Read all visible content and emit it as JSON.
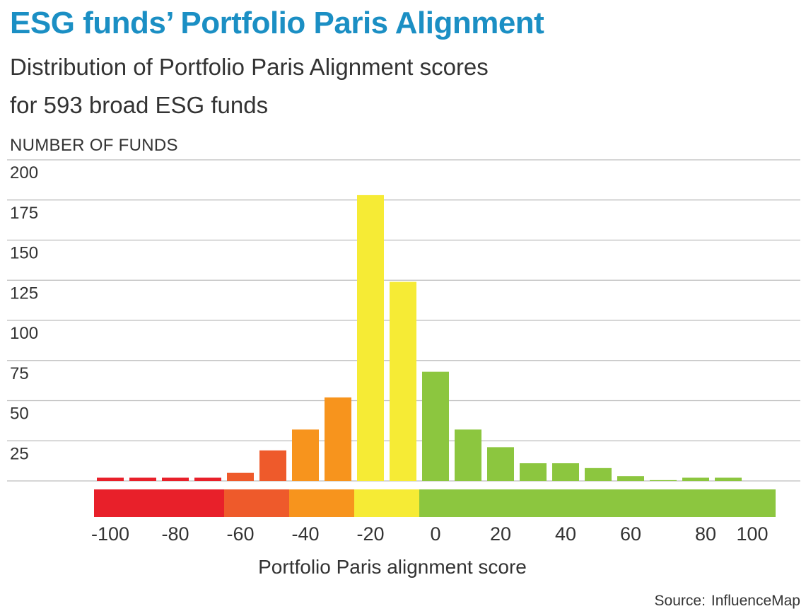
{
  "chart_data": {
    "type": "bar",
    "title": "ESG funds’ Portfolio Paris Alignment",
    "subtitle_lines": [
      "Distribution of Portfolio Paris Alignment scores",
      "for 593 broad ESG funds"
    ],
    "ylabel": "NUMBER OF FUNDS",
    "xlabel": "Portfolio Paris alignment score",
    "ylim": [
      0,
      200
    ],
    "yticks": [
      25,
      50,
      75,
      100,
      125,
      150,
      175,
      200
    ],
    "grid": true,
    "bins": [
      {
        "x": -100,
        "value": 2,
        "color": "#e8202a"
      },
      {
        "x": -90,
        "value": 2,
        "color": "#e8202a"
      },
      {
        "x": -80,
        "value": 2,
        "color": "#e8202a"
      },
      {
        "x": -70,
        "value": 2,
        "color": "#e8202a"
      },
      {
        "x": -60,
        "value": 5,
        "color": "#ee5a2b"
      },
      {
        "x": -50,
        "value": 19,
        "color": "#ee5a2b"
      },
      {
        "x": -40,
        "value": 32,
        "color": "#f7941d"
      },
      {
        "x": -30,
        "value": 52,
        "color": "#f7941d"
      },
      {
        "x": -20,
        "value": 178,
        "color": "#f6eb35"
      },
      {
        "x": -10,
        "value": 124,
        "color": "#f6eb35"
      },
      {
        "x": 0,
        "value": 68,
        "color": "#8cc63f"
      },
      {
        "x": 10,
        "value": 32,
        "color": "#8cc63f"
      },
      {
        "x": 20,
        "value": 21,
        "color": "#8cc63f"
      },
      {
        "x": 30,
        "value": 11,
        "color": "#8cc63f"
      },
      {
        "x": 40,
        "value": 11,
        "color": "#8cc63f"
      },
      {
        "x": 50,
        "value": 8,
        "color": "#8cc63f"
      },
      {
        "x": 60,
        "value": 3,
        "color": "#8cc63f"
      },
      {
        "x": 70,
        "value": 0.5,
        "color": "#8cc63f"
      },
      {
        "x": 80,
        "value": 2,
        "color": "#8cc63f"
      },
      {
        "x": 90,
        "value": 2,
        "color": "#8cc63f"
      }
    ],
    "color_scale": [
      {
        "from": -100,
        "to": -65,
        "color": "#e8202a"
      },
      {
        "from": -65,
        "to": -45,
        "color": "#ee5a2b"
      },
      {
        "from": -45,
        "to": -25,
        "color": "#f7941d"
      },
      {
        "from": -25,
        "to": -5,
        "color": "#f6eb35"
      },
      {
        "from": -5,
        "to": 100,
        "color": "#8cc63f"
      }
    ],
    "xticks": [
      -100,
      -80,
      -60,
      -40,
      -20,
      0,
      20,
      40,
      60,
      80,
      100
    ],
    "source_label": "Source:",
    "source_value": "InfluenceMap"
  }
}
